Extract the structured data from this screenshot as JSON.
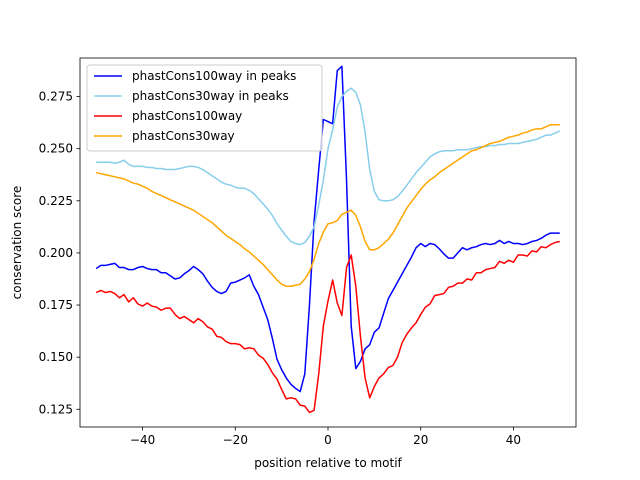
{
  "chart_data": {
    "type": "line",
    "title": "",
    "xlabel": "position relative to motif",
    "ylabel": "conservation score",
    "xlim": [
      -53.5,
      53.5
    ],
    "ylim": [
      0.1165,
      0.2935
    ],
    "xticks": [
      -40,
      -20,
      0,
      20,
      40
    ],
    "xtick_labels": [
      "−40",
      "−20",
      "0",
      "20",
      "40"
    ],
    "yticks": [
      0.125,
      0.15,
      0.175,
      0.2,
      0.225,
      0.25,
      0.275
    ],
    "ytick_labels": [
      "0.125",
      "0.150",
      "0.175",
      "0.200",
      "0.225",
      "0.250",
      "0.275"
    ],
    "grid": false,
    "legend_position": "top-left",
    "x": [
      -50,
      -49,
      -48,
      -47,
      -46,
      -45,
      -44,
      -43,
      -42,
      -41,
      -40,
      -39,
      -38,
      -37,
      -36,
      -35,
      -34,
      -33,
      -32,
      -31,
      -30,
      -29,
      -28,
      -27,
      -26,
      -25,
      -24,
      -23,
      -22,
      -21,
      -20,
      -19,
      -18,
      -17,
      -16,
      -15,
      -14,
      -13,
      -12,
      -11,
      -10,
      -9,
      -8,
      -7,
      -6,
      -5,
      -4,
      -3,
      -2,
      -1,
      0,
      1,
      2,
      3,
      4,
      5,
      6,
      7,
      8,
      9,
      10,
      11,
      12,
      13,
      14,
      15,
      16,
      17,
      18,
      19,
      20,
      21,
      22,
      23,
      24,
      25,
      26,
      27,
      28,
      29,
      30,
      31,
      32,
      33,
      34,
      35,
      36,
      37,
      38,
      39,
      40,
      41,
      42,
      43,
      44,
      45,
      46,
      47,
      48,
      49,
      50
    ],
    "series": [
      {
        "name": "phastCons100way in peaks",
        "color": "#0000ff",
        "values": [
          0.1925,
          0.194,
          0.194,
          0.1945,
          0.195,
          0.193,
          0.193,
          0.192,
          0.192,
          0.193,
          0.1935,
          0.1925,
          0.192,
          0.192,
          0.1905,
          0.1905,
          0.189,
          0.1875,
          0.188,
          0.19,
          0.1915,
          0.1935,
          0.192,
          0.19,
          0.1865,
          0.1835,
          0.1815,
          0.1805,
          0.1815,
          0.1855,
          0.186,
          0.187,
          0.188,
          0.1895,
          0.184,
          0.18,
          0.174,
          0.168,
          0.159,
          0.149,
          0.144,
          0.14,
          0.137,
          0.135,
          0.1335,
          0.142,
          0.175,
          0.215,
          0.24,
          0.264,
          0.263,
          0.262,
          0.2875,
          0.2895,
          0.235,
          0.165,
          0.1445,
          0.148,
          0.154,
          0.156,
          0.162,
          0.164,
          0.171,
          0.178,
          0.182,
          0.186,
          0.19,
          0.194,
          0.198,
          0.2025,
          0.2045,
          0.203,
          0.2045,
          0.204,
          0.202,
          0.1995,
          0.1975,
          0.1975,
          0.2,
          0.2025,
          0.2015,
          0.2025,
          0.203,
          0.204,
          0.2045,
          0.204,
          0.2045,
          0.206,
          0.2045,
          0.2055,
          0.2045,
          0.2045,
          0.204,
          0.2045,
          0.2055,
          0.206,
          0.207,
          0.2085,
          0.2095,
          0.2095,
          0.2095
        ]
      },
      {
        "name": "phastCons30way in peaks",
        "color": "#87ceeb",
        "values": [
          0.2435,
          0.2435,
          0.2435,
          0.2435,
          0.243,
          0.2435,
          0.2445,
          0.2425,
          0.2415,
          0.2415,
          0.2415,
          0.241,
          0.241,
          0.2405,
          0.2405,
          0.24,
          0.24,
          0.24,
          0.2405,
          0.241,
          0.2415,
          0.2415,
          0.241,
          0.24,
          0.2385,
          0.237,
          0.2355,
          0.234,
          0.233,
          0.2325,
          0.2315,
          0.231,
          0.231,
          0.23,
          0.2285,
          0.226,
          0.2235,
          0.221,
          0.218,
          0.214,
          0.211,
          0.208,
          0.2055,
          0.2045,
          0.204,
          0.205,
          0.208,
          0.2125,
          0.223,
          0.235,
          0.25,
          0.259,
          0.27,
          0.275,
          0.2775,
          0.279,
          0.277,
          0.271,
          0.258,
          0.24,
          0.2295,
          0.2255,
          0.225,
          0.225,
          0.2255,
          0.227,
          0.2295,
          0.2325,
          0.2355,
          0.2385,
          0.241,
          0.2435,
          0.246,
          0.2475,
          0.2485,
          0.249,
          0.249,
          0.249,
          0.2495,
          0.2495,
          0.2495,
          0.25,
          0.2505,
          0.251,
          0.251,
          0.2515,
          0.2515,
          0.252,
          0.252,
          0.2525,
          0.2525,
          0.2525,
          0.253,
          0.2535,
          0.254,
          0.2545,
          0.2555,
          0.2565,
          0.2565,
          0.2575,
          0.2585
        ]
      },
      {
        "name": "phastCons100way",
        "color": "#ff0000",
        "values": [
          0.181,
          0.182,
          0.181,
          0.1815,
          0.1805,
          0.1785,
          0.18,
          0.1765,
          0.1785,
          0.1755,
          0.1745,
          0.176,
          0.1745,
          0.174,
          0.1725,
          0.1735,
          0.1735,
          0.1705,
          0.1685,
          0.1695,
          0.168,
          0.1665,
          0.1685,
          0.167,
          0.1645,
          0.1635,
          0.16,
          0.1595,
          0.1575,
          0.1565,
          0.1565,
          0.156,
          0.154,
          0.1545,
          0.154,
          0.151,
          0.1495,
          0.1465,
          0.1425,
          0.1395,
          0.1345,
          0.13,
          0.1305,
          0.13,
          0.127,
          0.1265,
          0.1235,
          0.1245,
          0.142,
          0.165,
          0.177,
          0.187,
          0.176,
          0.17,
          0.193,
          0.199,
          0.184,
          0.16,
          0.14,
          0.1305,
          0.136,
          0.14,
          0.142,
          0.145,
          0.146,
          0.15,
          0.157,
          0.161,
          0.164,
          0.1665,
          0.1705,
          0.174,
          0.1755,
          0.1795,
          0.18,
          0.1805,
          0.1835,
          0.184,
          0.1855,
          0.1855,
          0.1875,
          0.187,
          0.1905,
          0.1905,
          0.192,
          0.1925,
          0.193,
          0.196,
          0.195,
          0.1965,
          0.1955,
          0.199,
          0.199,
          0.1985,
          0.201,
          0.2005,
          0.203,
          0.2025,
          0.204,
          0.205,
          0.2055
        ]
      },
      {
        "name": "phastCons30way",
        "color": "#ffa500",
        "values": [
          0.2385,
          0.238,
          0.2375,
          0.237,
          0.2365,
          0.236,
          0.2355,
          0.2345,
          0.2335,
          0.233,
          0.232,
          0.231,
          0.2295,
          0.2285,
          0.2275,
          0.2265,
          0.2255,
          0.2245,
          0.2235,
          0.2225,
          0.2215,
          0.2205,
          0.219,
          0.2175,
          0.216,
          0.2145,
          0.2125,
          0.2105,
          0.2085,
          0.207,
          0.2055,
          0.204,
          0.202,
          0.2005,
          0.1985,
          0.1965,
          0.1945,
          0.192,
          0.1895,
          0.187,
          0.185,
          0.184,
          0.184,
          0.1845,
          0.185,
          0.1875,
          0.191,
          0.197,
          0.2045,
          0.21,
          0.214,
          0.2145,
          0.2155,
          0.2185,
          0.2195,
          0.2205,
          0.218,
          0.2125,
          0.2055,
          0.2015,
          0.2015,
          0.2025,
          0.2045,
          0.2065,
          0.2095,
          0.2135,
          0.2175,
          0.2215,
          0.2245,
          0.2275,
          0.2305,
          0.233,
          0.235,
          0.2365,
          0.2385,
          0.24,
          0.2415,
          0.243,
          0.2445,
          0.246,
          0.2475,
          0.249,
          0.2495,
          0.2505,
          0.2515,
          0.2525,
          0.253,
          0.2535,
          0.2545,
          0.2555,
          0.256,
          0.2565,
          0.2575,
          0.258,
          0.259,
          0.2595,
          0.2595,
          0.2605,
          0.2615,
          0.2615,
          0.2615
        ]
      }
    ]
  }
}
